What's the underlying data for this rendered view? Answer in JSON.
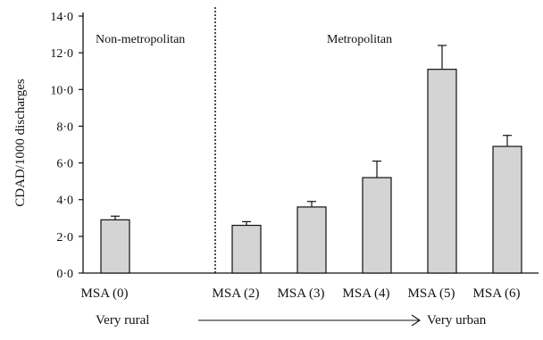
{
  "chart_data": {
    "type": "bar",
    "ylabel": "CDAD/1000 discharges",
    "ylim": [
      0,
      14
    ],
    "yticks": [
      "0·0",
      "2·0",
      "4·0",
      "6·0",
      "8·0",
      "10·0",
      "12·0",
      "14·0"
    ],
    "categories": [
      "MSA (0)",
      "MSA (2)",
      "MSA (3)",
      "MSA (4)",
      "MSA (5)",
      "MSA (6)"
    ],
    "values": [
      2.9,
      2.6,
      3.6,
      5.2,
      11.1,
      6.9
    ],
    "error": [
      0.2,
      0.2,
      0.3,
      0.9,
      1.3,
      0.6
    ],
    "bar_color": "#d4d4d4",
    "region_labels": [
      "Non-metropolitan",
      "Metropolitan"
    ],
    "scale_left": "Very rural",
    "scale_right": "Very urban"
  }
}
